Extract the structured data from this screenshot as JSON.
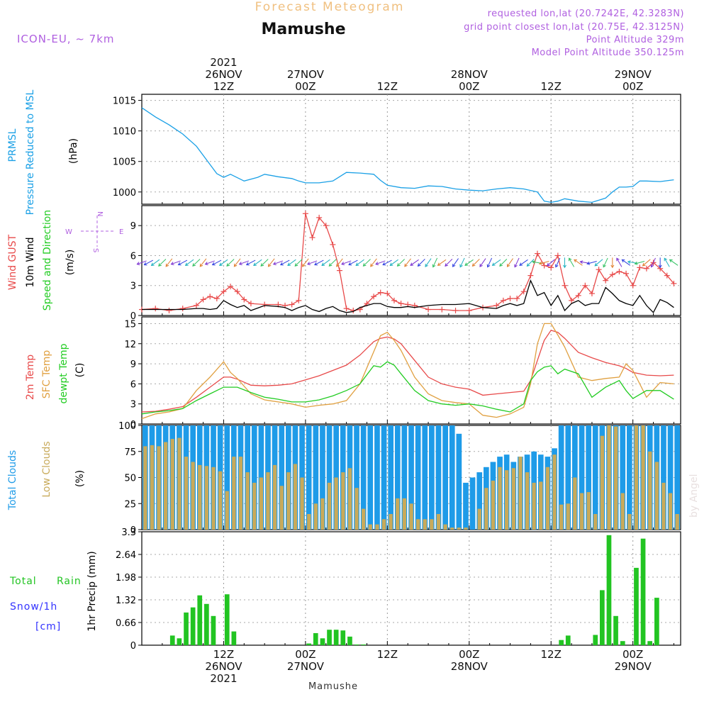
{
  "header": {
    "product": "Forecast Meteogram",
    "location": "Mamushe",
    "model": "ICON-EU,  ~ 7km",
    "requested": "requested lon,lat (20.7242E, 42.3283N)",
    "gridpoint": "grid point closest lon,lat (20.75E, 42.3125N)",
    "point_alt": "Point Altitude 329m",
    "model_alt": "Model Point Altitude 350.125m",
    "footer": "Mamushe",
    "credit": "by Angel"
  },
  "time_axis": {
    "top_labels": [
      {
        "h": 12,
        "lines": [
          "2021",
          "26NOV",
          "12Z"
        ]
      },
      {
        "h": 24,
        "lines": [
          "27NOV",
          "00Z"
        ]
      },
      {
        "h": 36,
        "lines": [
          "12Z"
        ]
      },
      {
        "h": 48,
        "lines": [
          "28NOV",
          "00Z"
        ]
      },
      {
        "h": 60,
        "lines": [
          "12Z"
        ]
      },
      {
        "h": 72,
        "lines": [
          "29NOV",
          "00Z"
        ]
      }
    ],
    "bottom_labels": [
      {
        "h": 12,
        "lines": [
          "12Z",
          "26NOV",
          "2021"
        ]
      },
      {
        "h": 24,
        "lines": [
          "00Z",
          "27NOV"
        ]
      },
      {
        "h": 36,
        "lines": [
          "12Z"
        ]
      },
      {
        "h": 48,
        "lines": [
          "00Z",
          "28NOV"
        ]
      },
      {
        "h": 60,
        "lines": [
          "12Z"
        ]
      },
      {
        "h": 72,
        "lines": [
          "00Z",
          "29NOV"
        ]
      }
    ]
  },
  "panels": {
    "pressure": {
      "ylabel_1": "PRMSL",
      "ylabel_2": "Pressure Reduced to MSL",
      "unit": "(hPa)",
      "ticks": [
        "1000",
        "1005",
        "1010",
        "1015"
      ]
    },
    "wind": {
      "ylabel_gust": "Wind GUST",
      "ylabel_wind": "10m Wind",
      "ylabel_dir": "Speed and Direction",
      "unit": "(m/s)",
      "ticks": [
        "0",
        "3",
        "6",
        "9"
      ],
      "compass": {
        "n": "N",
        "s": "S",
        "w": "W",
        "e": "E"
      }
    },
    "temp": {
      "ylabel_2m": "2m Temp",
      "ylabel_sfc": "SFC Temp",
      "ylabel_dew": "dewpt Temp",
      "unit": "(C)",
      "ticks": [
        "0",
        "3",
        "6",
        "9",
        "12",
        "15"
      ]
    },
    "clouds": {
      "ylabel_total": "Total Clouds",
      "ylabel_low": "Low Clouds",
      "unit": "(%)",
      "ticks": [
        "0",
        "25",
        "50",
        "75",
        "100"
      ]
    },
    "precip": {
      "ylabel_total": "Total",
      "ylabel_rain": "Rain",
      "ylabel_snow": "Snow/1h",
      "ylabel_cm": "[cm]",
      "unit": "1hr Precip (mm)",
      "ticks": [
        "0",
        "0.66",
        "1.32",
        "1.98",
        "2.64",
        "3.3"
      ]
    }
  },
  "colors": {
    "pressure": "#1aa0e6",
    "gust": "#e84a4a",
    "wind": "#000000",
    "temp2m": "#e84a4a",
    "sfc": "#e0a040",
    "dew": "#22cc22",
    "total_clouds": "#1e9be8",
    "low_clouds": "#c8aa5a",
    "rain": "#22c422",
    "title_orange": "#f0c080",
    "purple": "#b060e0",
    "snow_blue": "#3333ff"
  },
  "chart_data": [
    {
      "type": "line",
      "title": "PRMSL",
      "ylabel": "(hPa)",
      "ylim": [
        998,
        1016
      ],
      "x_hours_from_2021-11-26T00Z": [
        0,
        2,
        4,
        6,
        8,
        10,
        11,
        12,
        13,
        15,
        17,
        18,
        20,
        22,
        23,
        24,
        26,
        28,
        30,
        32,
        34,
        35,
        36,
        38,
        40,
        42,
        44,
        46,
        48,
        50,
        52,
        54,
        56,
        58,
        59,
        60,
        61,
        62,
        64,
        66,
        68,
        69,
        70,
        71,
        72,
        73,
        74,
        76,
        78
      ],
      "series": [
        {
          "name": "PRMSL",
          "values": [
            1013.8,
            1012.3,
            1011.0,
            1009.5,
            1007.5,
            1004.5,
            1003.0,
            1002.4,
            1002.9,
            1001.8,
            1002.4,
            1002.9,
            1002.5,
            1002.2,
            1001.8,
            1001.5,
            1001.5,
            1001.8,
            1003.2,
            1003.1,
            1002.9,
            1001.9,
            1001.1,
            1000.7,
            1000.6,
            1001.0,
            1000.9,
            1000.5,
            1000.3,
            1000.2,
            1000.5,
            1000.7,
            1000.5,
            1000.0,
            998.5,
            998.3,
            998.5,
            998.9,
            998.5,
            998.3,
            999.0,
            1000.0,
            1000.8,
            1000.8,
            1000.9,
            1001.8,
            1001.8,
            1001.7,
            1002.0
          ]
        }
      ]
    },
    {
      "type": "line",
      "title": "Wind GUST / 10m Wind",
      "ylabel": "(m/s)",
      "ylim": [
        0,
        11
      ],
      "x_hours_from_2021-11-26T00Z": [
        0,
        2,
        4,
        6,
        8,
        9,
        10,
        11,
        12,
        13,
        14,
        15,
        16,
        18,
        20,
        21,
        22,
        23,
        24,
        25,
        26,
        27,
        28,
        29,
        30,
        31,
        32,
        33,
        34,
        35,
        36,
        37,
        38,
        39,
        40,
        42,
        44,
        46,
        48,
        50,
        52,
        53,
        54,
        55,
        56,
        57,
        58,
        59,
        60,
        61,
        62,
        63,
        64,
        65,
        66,
        67,
        68,
        69,
        70,
        71,
        72,
        73,
        74,
        75,
        76,
        77,
        78
      ],
      "series": [
        {
          "name": "Wind GUST",
          "values": [
            0.6,
            0.7,
            0.5,
            0.7,
            1.0,
            1.6,
            1.9,
            1.7,
            2.4,
            2.9,
            2.4,
            1.6,
            1.2,
            1.1,
            1.1,
            1.0,
            1.1,
            1.5,
            10.2,
            7.8,
            9.8,
            9.0,
            7.1,
            4.5,
            0.7,
            0.5,
            0.6,
            1.2,
            1.9,
            2.3,
            2.2,
            1.5,
            1.2,
            1.1,
            1.0,
            0.6,
            0.6,
            0.5,
            0.5,
            0.8,
            1.0,
            1.5,
            1.7,
            1.7,
            2.4,
            4.0,
            6.2,
            5.0,
            4.8,
            6.0,
            3.0,
            1.5,
            2.0,
            3.0,
            2.2,
            4.6,
            3.5,
            4.1,
            4.4,
            4.2,
            3.0,
            4.8,
            4.7,
            5.3,
            4.7,
            4.0,
            3.2
          ]
        },
        {
          "name": "10m Wind",
          "values": [
            0.6,
            0.6,
            0.6,
            0.6,
            0.7,
            0.7,
            0.6,
            0.7,
            1.5,
            1.1,
            0.8,
            1.0,
            0.5,
            1.0,
            0.9,
            0.8,
            0.5,
            0.8,
            1.0,
            0.6,
            0.4,
            0.7,
            0.9,
            0.5,
            0.3,
            0.4,
            0.8,
            1.0,
            1.2,
            1.2,
            0.9,
            0.8,
            0.8,
            0.9,
            0.8,
            1.0,
            1.1,
            1.1,
            1.2,
            0.8,
            0.7,
            1.0,
            1.2,
            1.0,
            1.2,
            3.5,
            2.0,
            2.3,
            1.0,
            2.0,
            0.5,
            1.2,
            1.5,
            1.0,
            1.2,
            1.2,
            2.8,
            2.2,
            1.5,
            1.2,
            1.0,
            2.0,
            1.0,
            0.3,
            1.6,
            1.3,
            0.8
          ]
        }
      ]
    },
    {
      "type": "line",
      "title": "2m Temp / SFC Temp / dewpt Temp",
      "ylabel": "(C)",
      "ylim": [
        0,
        16
      ],
      "x_hours_from_2021-11-26T00Z": [
        0,
        2,
        4,
        6,
        8,
        10,
        12,
        13,
        14,
        16,
        18,
        20,
        22,
        24,
        26,
        28,
        30,
        32,
        34,
        35,
        36,
        37,
        38,
        40,
        42,
        44,
        46,
        48,
        50,
        52,
        54,
        56,
        57,
        58,
        59,
        60,
        61,
        62,
        64,
        66,
        68,
        70,
        71,
        72,
        74,
        76,
        78
      ],
      "series": [
        {
          "name": "2m Temp",
          "values": [
            1.8,
            1.9,
            2.2,
            2.6,
            4.0,
            5.5,
            7.0,
            7.0,
            6.7,
            5.8,
            5.7,
            5.8,
            6.0,
            6.6,
            7.2,
            8.0,
            8.8,
            10.3,
            12.3,
            12.8,
            13.0,
            12.7,
            12.0,
            9.5,
            7.0,
            6.0,
            5.5,
            5.2,
            4.3,
            4.5,
            4.7,
            4.9,
            6.5,
            9.5,
            12.5,
            14.0,
            13.7,
            12.8,
            10.7,
            9.9,
            9.2,
            8.7,
            8.3,
            7.7,
            7.3,
            7.2,
            7.3
          ]
        },
        {
          "name": "SFC Temp",
          "values": [
            0.8,
            1.5,
            1.8,
            2.3,
            5.0,
            7.0,
            9.3,
            7.7,
            6.8,
            4.5,
            3.6,
            3.3,
            3.0,
            2.5,
            2.8,
            3.0,
            3.5,
            6.0,
            10.8,
            13.2,
            13.7,
            12.5,
            11.0,
            7.0,
            4.5,
            3.5,
            3.2,
            3.0,
            1.3,
            1.0,
            1.5,
            2.5,
            6.0,
            12.0,
            15.0,
            15.0,
            13.3,
            11.5,
            7.0,
            6.5,
            6.8,
            7.0,
            9.0,
            8.0,
            4.0,
            6.2,
            6.0
          ]
        },
        {
          "name": "dewpt Temp",
          "values": [
            1.5,
            1.8,
            2.0,
            2.3,
            3.5,
            4.5,
            5.5,
            5.5,
            5.5,
            4.7,
            4.0,
            3.7,
            3.3,
            3.3,
            3.6,
            4.2,
            5.0,
            6.0,
            8.7,
            8.5,
            9.3,
            8.8,
            7.5,
            5.0,
            3.5,
            3.0,
            2.8,
            3.0,
            2.7,
            2.2,
            1.8,
            3.0,
            6.5,
            7.8,
            8.5,
            8.7,
            7.5,
            8.2,
            7.5,
            4.0,
            5.5,
            6.5,
            5.0,
            3.8,
            5.0,
            5.0,
            3.7
          ]
        }
      ]
    },
    {
      "type": "bar",
      "title": "Total Clouds / Low Clouds",
      "ylabel": "(%)",
      "ylim": [
        0,
        100
      ],
      "x_hours_from_2021-11-26T00Z": [
        0,
        1,
        2,
        3,
        4,
        5,
        6,
        7,
        8,
        9,
        10,
        11,
        12,
        13,
        14,
        15,
        16,
        17,
        18,
        19,
        20,
        21,
        22,
        23,
        24,
        25,
        26,
        27,
        28,
        29,
        30,
        31,
        32,
        33,
        34,
        35,
        36,
        37,
        38,
        39,
        40,
        41,
        42,
        43,
        44,
        45,
        46,
        47,
        48,
        49,
        50,
        51,
        52,
        53,
        54,
        55,
        56,
        57,
        58,
        59,
        60,
        61,
        62,
        63,
        64,
        65,
        66,
        67,
        68,
        69,
        70,
        71,
        72,
        73,
        74,
        75,
        76,
        77,
        78
      ],
      "series": [
        {
          "name": "Total Clouds",
          "values": [
            100,
            100,
            100,
            100,
            100,
            100,
            100,
            100,
            100,
            100,
            100,
            100,
            100,
            100,
            100,
            100,
            100,
            100,
            100,
            100,
            100,
            100,
            100,
            100,
            100,
            100,
            100,
            100,
            100,
            100,
            100,
            100,
            100,
            100,
            100,
            100,
            100,
            100,
            100,
            100,
            100,
            100,
            100,
            100,
            100,
            100,
            92,
            45,
            50,
            55,
            60,
            65,
            70,
            72,
            65,
            70,
            72,
            75,
            72,
            70,
            78,
            100,
            100,
            100,
            100,
            100,
            100,
            100,
            100,
            100,
            100,
            100,
            100,
            100,
            100,
            100,
            100,
            100,
            100
          ]
        },
        {
          "name": "Low Clouds",
          "values": [
            80,
            81,
            80,
            84,
            87,
            88,
            70,
            65,
            62,
            61,
            60,
            56,
            37,
            70,
            70,
            55,
            45,
            50,
            55,
            62,
            42,
            55,
            63,
            50,
            15,
            25,
            30,
            45,
            50,
            55,
            59,
            40,
            20,
            5,
            5,
            10,
            15,
            30,
            30,
            25,
            10,
            10,
            10,
            15,
            5,
            2,
            2,
            2,
            0,
            20,
            40,
            47,
            60,
            57,
            59,
            70,
            55,
            45,
            46,
            60,
            72,
            24,
            25,
            50,
            35,
            36,
            15,
            90,
            100,
            99,
            35,
            15,
            100,
            100,
            75,
            65,
            45,
            35,
            15
          ]
        }
      ]
    },
    {
      "type": "bar",
      "title": "1hr Precip",
      "ylabel": "1hr Precip (mm)",
      "ylim": [
        0,
        3.3
      ],
      "x_hours_from_2021-11-26T00Z": [
        0,
        1,
        2,
        3,
        4,
        5,
        6,
        7,
        8,
        9,
        10,
        11,
        12,
        13,
        14,
        15,
        16,
        17,
        18,
        19,
        20,
        21,
        22,
        23,
        24,
        25,
        26,
        27,
        28,
        29,
        30,
        31,
        32,
        33,
        34,
        35,
        36,
        37,
        38,
        39,
        40,
        41,
        42,
        43,
        44,
        45,
        46,
        47,
        48,
        49,
        50,
        51,
        52,
        53,
        54,
        55,
        56,
        57,
        58,
        59,
        60,
        61,
        62,
        63,
        64,
        65,
        66,
        67,
        68,
        69,
        70,
        71,
        72,
        73,
        74,
        75,
        76,
        77,
        78
      ],
      "series": [
        {
          "name": "Total Rain",
          "values": [
            0,
            0,
            0,
            0,
            0.28,
            0.2,
            0.95,
            1.1,
            1.45,
            1.2,
            0.85,
            0,
            1.48,
            0.4,
            0,
            0,
            0,
            0,
            0,
            0,
            0,
            0,
            0,
            0,
            0.05,
            0.35,
            0.2,
            0.45,
            0.45,
            0.43,
            0.25,
            0.02,
            0.02,
            0,
            0,
            0,
            0,
            0,
            0,
            0,
            0,
            0,
            0,
            0,
            0,
            0,
            0,
            0,
            0,
            0,
            0,
            0,
            0,
            0,
            0,
            0,
            0,
            0,
            0,
            0,
            0,
            0.15,
            0.28,
            0,
            0,
            0,
            0.3,
            1.6,
            3.2,
            0.85,
            0.12,
            0,
            2.25,
            3.1,
            0.12,
            1.38,
            0,
            0,
            0
          ]
        }
      ]
    }
  ]
}
